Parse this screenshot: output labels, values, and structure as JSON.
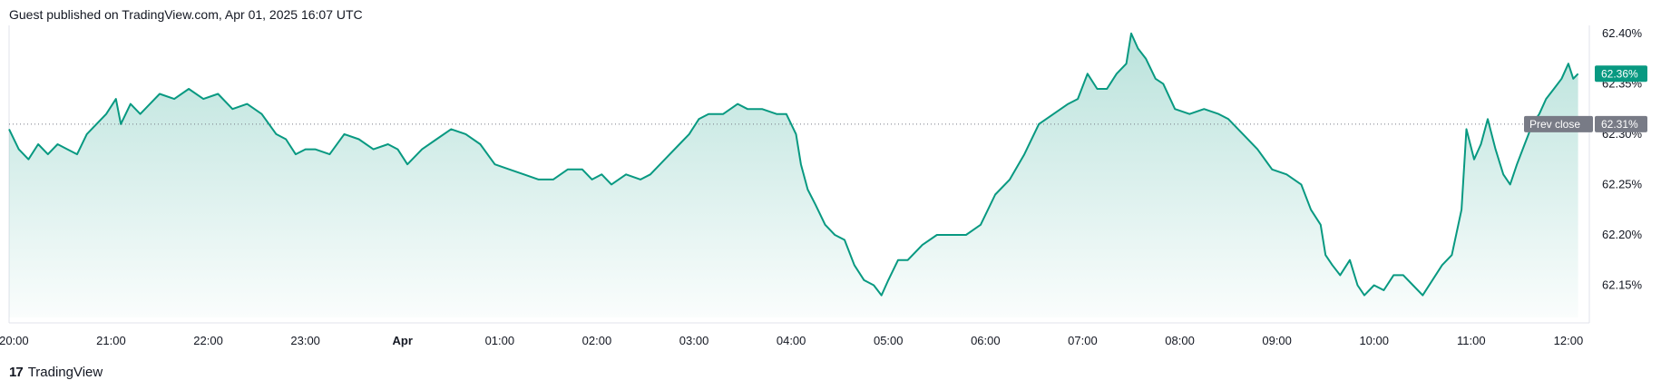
{
  "header": {
    "published": "Guest published on TradingView.com, Apr 01, 2025 16:07 UTC"
  },
  "footer": {
    "brand": "TradingView",
    "logo_glyph": "17"
  },
  "colors": {
    "line": "#089981",
    "fill_top": "#089981",
    "last_tag": "#089981",
    "prev_tag": "#787b86",
    "grid": "#e0e3eb"
  },
  "chart_data": {
    "type": "area",
    "title": "",
    "xlabel": "",
    "ylabel": "",
    "grid": false,
    "x_ticks": [
      "20:00",
      "21:00",
      "22:00",
      "23:00",
      "Apr",
      "01:00",
      "02:00",
      "03:00",
      "04:00",
      "05:00",
      "06:00",
      "07:00",
      "08:00",
      "09:00",
      "10:00",
      "11:00",
      "12:00"
    ],
    "y_ticks": [
      "62.40%",
      "62.35%",
      "62.30%",
      "62.25%",
      "62.20%",
      "62.15%"
    ],
    "y_tick_values": [
      62.4,
      62.35,
      62.3,
      62.25,
      62.2,
      62.15
    ],
    "ylim": [
      62.118,
      62.408
    ],
    "x_range_hours": [
      0,
      16.2
    ],
    "prev_close": {
      "label": "Prev close",
      "value": 62.31,
      "text": "62.31%"
    },
    "last": {
      "value": 62.36,
      "text": "62.36%"
    },
    "series": [
      {
        "points": [
          [
            0.0,
            62.305
          ],
          [
            0.1,
            62.285
          ],
          [
            0.2,
            62.275
          ],
          [
            0.3,
            62.29
          ],
          [
            0.4,
            62.28
          ],
          [
            0.5,
            62.29
          ],
          [
            0.6,
            62.285
          ],
          [
            0.7,
            62.28
          ],
          [
            0.8,
            62.3
          ],
          [
            0.9,
            62.31
          ],
          [
            1.0,
            62.32
          ],
          [
            1.1,
            62.335
          ],
          [
            1.15,
            62.31
          ],
          [
            1.25,
            62.33
          ],
          [
            1.35,
            62.32
          ],
          [
            1.45,
            62.33
          ],
          [
            1.55,
            62.34
          ],
          [
            1.7,
            62.335
          ],
          [
            1.85,
            62.345
          ],
          [
            2.0,
            62.335
          ],
          [
            2.15,
            62.34
          ],
          [
            2.3,
            62.325
          ],
          [
            2.45,
            62.33
          ],
          [
            2.6,
            62.32
          ],
          [
            2.75,
            62.3
          ],
          [
            2.85,
            62.295
          ],
          [
            2.95,
            62.28
          ],
          [
            3.05,
            62.285
          ],
          [
            3.15,
            62.285
          ],
          [
            3.3,
            62.28
          ],
          [
            3.45,
            62.3
          ],
          [
            3.6,
            62.295
          ],
          [
            3.75,
            62.285
          ],
          [
            3.9,
            62.29
          ],
          [
            4.0,
            62.285
          ],
          [
            4.1,
            62.27
          ],
          [
            4.25,
            62.285
          ],
          [
            4.4,
            62.295
          ],
          [
            4.55,
            62.305
          ],
          [
            4.7,
            62.3
          ],
          [
            4.85,
            62.29
          ],
          [
            5.0,
            62.27
          ],
          [
            5.15,
            62.265
          ],
          [
            5.3,
            62.26
          ],
          [
            5.45,
            62.255
          ],
          [
            5.6,
            62.255
          ],
          [
            5.75,
            62.265
          ],
          [
            5.9,
            62.265
          ],
          [
            6.0,
            62.255
          ],
          [
            6.1,
            62.26
          ],
          [
            6.2,
            62.25
          ],
          [
            6.35,
            62.26
          ],
          [
            6.5,
            62.255
          ],
          [
            6.6,
            62.26
          ],
          [
            6.75,
            62.275
          ],
          [
            6.9,
            62.29
          ],
          [
            7.0,
            62.3
          ],
          [
            7.1,
            62.315
          ],
          [
            7.2,
            62.32
          ],
          [
            7.35,
            62.32
          ],
          [
            7.5,
            62.33
          ],
          [
            7.6,
            62.325
          ],
          [
            7.75,
            62.325
          ],
          [
            7.9,
            62.32
          ],
          [
            8.0,
            62.32
          ],
          [
            8.1,
            62.3
          ],
          [
            8.15,
            62.27
          ],
          [
            8.22,
            62.245
          ],
          [
            8.3,
            62.23
          ],
          [
            8.4,
            62.21
          ],
          [
            8.5,
            62.2
          ],
          [
            8.6,
            62.195
          ],
          [
            8.7,
            62.17
          ],
          [
            8.8,
            62.155
          ],
          [
            8.9,
            62.15
          ],
          [
            8.98,
            62.14
          ],
          [
            9.05,
            62.155
          ],
          [
            9.15,
            62.175
          ],
          [
            9.25,
            62.175
          ],
          [
            9.4,
            62.19
          ],
          [
            9.55,
            62.2
          ],
          [
            9.7,
            62.2
          ],
          [
            9.85,
            62.2
          ],
          [
            10.0,
            62.21
          ],
          [
            10.15,
            62.24
          ],
          [
            10.3,
            62.255
          ],
          [
            10.45,
            62.28
          ],
          [
            10.6,
            62.31
          ],
          [
            10.75,
            62.32
          ],
          [
            10.9,
            62.33
          ],
          [
            11.0,
            62.335
          ],
          [
            11.1,
            62.36
          ],
          [
            11.2,
            62.345
          ],
          [
            11.3,
            62.345
          ],
          [
            11.4,
            62.36
          ],
          [
            11.5,
            62.37
          ],
          [
            11.55,
            62.4
          ],
          [
            11.62,
            62.385
          ],
          [
            11.7,
            62.375
          ],
          [
            11.8,
            62.355
          ],
          [
            11.88,
            62.35
          ],
          [
            12.0,
            62.325
          ],
          [
            12.15,
            62.32
          ],
          [
            12.3,
            62.325
          ],
          [
            12.45,
            62.32
          ],
          [
            12.55,
            62.315
          ],
          [
            12.7,
            62.3
          ],
          [
            12.85,
            62.285
          ],
          [
            13.0,
            62.265
          ],
          [
            13.15,
            62.26
          ],
          [
            13.3,
            62.25
          ],
          [
            13.4,
            62.225
          ],
          [
            13.5,
            62.21
          ],
          [
            13.55,
            62.18
          ],
          [
            13.62,
            62.17
          ],
          [
            13.7,
            62.16
          ],
          [
            13.8,
            62.175
          ],
          [
            13.88,
            62.15
          ],
          [
            13.95,
            62.14
          ],
          [
            14.05,
            62.15
          ],
          [
            14.15,
            62.145
          ],
          [
            14.25,
            62.16
          ],
          [
            14.35,
            62.16
          ],
          [
            14.45,
            62.15
          ],
          [
            14.55,
            62.14
          ],
          [
            14.65,
            62.155
          ],
          [
            14.75,
            62.17
          ],
          [
            14.85,
            62.18
          ],
          [
            14.95,
            62.225
          ],
          [
            15.0,
            62.305
          ],
          [
            15.08,
            62.275
          ],
          [
            15.15,
            62.29
          ],
          [
            15.22,
            62.315
          ],
          [
            15.3,
            62.285
          ],
          [
            15.38,
            62.26
          ],
          [
            15.45,
            62.25
          ],
          [
            15.52,
            62.27
          ],
          [
            15.6,
            62.29
          ],
          [
            15.68,
            62.31
          ],
          [
            15.75,
            62.32
          ],
          [
            15.82,
            62.335
          ],
          [
            15.9,
            62.345
          ],
          [
            15.98,
            62.355
          ],
          [
            16.05,
            62.37
          ],
          [
            16.1,
            62.355
          ],
          [
            16.15,
            62.36
          ]
        ]
      }
    ]
  }
}
